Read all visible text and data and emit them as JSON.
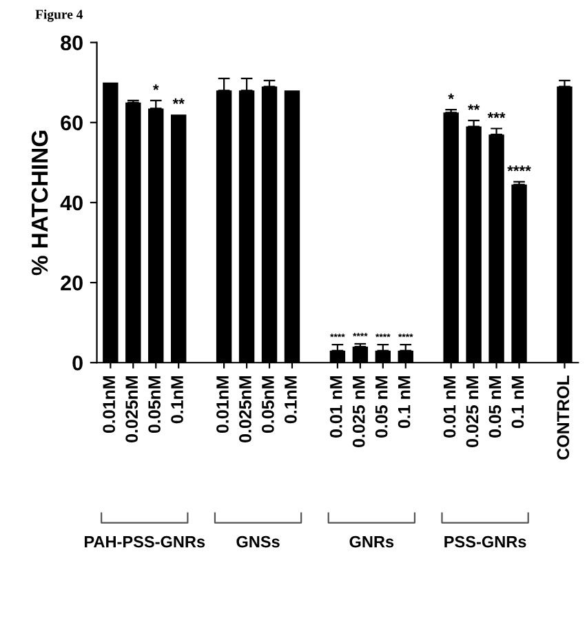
{
  "chart_data": {
    "type": "bar",
    "title": "Figure 4",
    "ylabel": "% HATCHING",
    "categories": [
      "0.01nM",
      "0.025nM",
      "0.05nM",
      "0.1nM",
      null,
      "0.01nM",
      "0.025nM",
      "0.05nM",
      "0.1nM",
      null,
      "0.01 nM",
      "0.025 nM",
      "0.05 nM",
      "0.1 nM",
      null,
      "0.01 nM",
      "0.025 nM",
      "0.05 nM",
      "0.1 nM",
      null,
      "CONTROL"
    ],
    "values": [
      70,
      65,
      63.5,
      62,
      null,
      68,
      68,
      69,
      68,
      null,
      3,
      4,
      3,
      3,
      null,
      62.5,
      59,
      57,
      44.5,
      null,
      69
    ],
    "errors": [
      null,
      0.5,
      2,
      null,
      null,
      3,
      3,
      1.5,
      null,
      null,
      1.5,
      0.7,
      1.5,
      1.5,
      null,
      0.7,
      1.5,
      1.5,
      0.7,
      null,
      1.5
    ],
    "value_labels": [
      null,
      null,
      "*",
      "**",
      null,
      null,
      null,
      null,
      null,
      null,
      "****",
      "****",
      "****",
      "****",
      null,
      "*",
      "**",
      "***",
      "****",
      null,
      null
    ],
    "color": "#000000",
    "annotations": [
      "PAH-PSS-GNRs",
      "GNSs",
      "GNRs",
      "PSS-GNRs"
    ],
    "ylim": [
      0,
      80
    ],
    "yticks": [
      0,
      20,
      40,
      60,
      80
    ],
    "grid": false
  }
}
